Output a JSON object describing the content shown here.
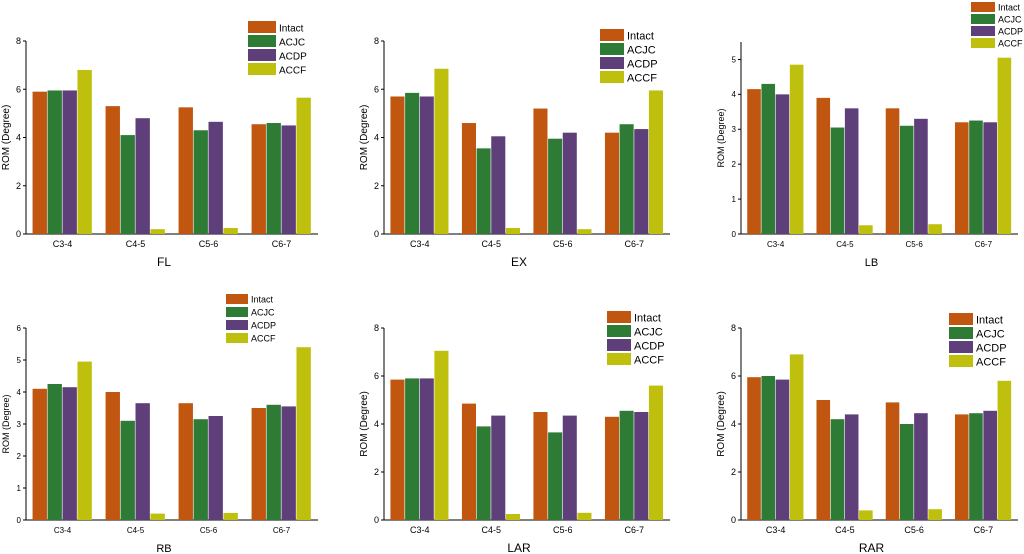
{
  "colors": {
    "Intact": "#c0560f",
    "ACJC": "#2e7b36",
    "ACDP": "#5e3f7a",
    "ACCF": "#bfbf0d"
  },
  "chart_data": [
    {
      "type": "bar",
      "title": "FL",
      "xlabel": "FL",
      "ylabel": "ROM (Degree)",
      "categories": [
        "C3-4",
        "C4-5",
        "C5-6",
        "C6-7"
      ],
      "ylim": [
        0,
        8
      ],
      "yticks": [
        0,
        2,
        4,
        6,
        8
      ],
      "legend_position": "top-right",
      "series": [
        {
          "name": "Intact",
          "values": [
            5.9,
            5.3,
            5.25,
            4.55
          ]
        },
        {
          "name": "ACJC",
          "values": [
            5.95,
            4.1,
            4.3,
            4.6
          ]
        },
        {
          "name": "ACDP",
          "values": [
            5.95,
            4.8,
            4.65,
            4.5
          ]
        },
        {
          "name": "ACCF",
          "values": [
            6.8,
            0.2,
            0.25,
            5.65
          ]
        }
      ]
    },
    {
      "type": "bar",
      "title": "EX",
      "xlabel": "EX",
      "ylabel": "ROM (Degree)",
      "categories": [
        "C3-4",
        "C4-5",
        "C5-6",
        "C6-7"
      ],
      "ylim": [
        0,
        8
      ],
      "yticks": [
        0,
        2,
        4,
        6,
        8
      ],
      "legend_position": "top-right",
      "series": [
        {
          "name": "Intact",
          "values": [
            5.7,
            4.6,
            5.2,
            4.2
          ]
        },
        {
          "name": "ACJC",
          "values": [
            5.85,
            3.55,
            3.95,
            4.55
          ]
        },
        {
          "name": "ACDP",
          "values": [
            5.7,
            4.05,
            4.2,
            4.35
          ]
        },
        {
          "name": "ACCF",
          "values": [
            6.85,
            0.25,
            0.2,
            5.95
          ]
        }
      ]
    },
    {
      "type": "bar",
      "title": "LB",
      "xlabel": "LB",
      "ylabel": "ROM (Degree)",
      "categories": [
        "C3-4",
        "C4-5",
        "C5-6",
        "C6-7"
      ],
      "ylim": [
        0,
        5.5
      ],
      "yticks": [
        0,
        1,
        2,
        3,
        4,
        5
      ],
      "legend_position": "top-right",
      "series": [
        {
          "name": "Intact",
          "values": [
            4.15,
            3.9,
            3.6,
            3.2
          ]
        },
        {
          "name": "ACJC",
          "values": [
            4.3,
            3.05,
            3.1,
            3.25
          ]
        },
        {
          "name": "ACDP",
          "values": [
            4.0,
            3.6,
            3.3,
            3.2
          ]
        },
        {
          "name": "ACCF",
          "values": [
            4.85,
            0.25,
            0.28,
            5.05
          ]
        }
      ]
    },
    {
      "type": "bar",
      "title": "RB",
      "xlabel": "RB",
      "ylabel": "ROM (Degree)",
      "categories": [
        "C3-4",
        "C4-5",
        "C5-6",
        "C6-7"
      ],
      "ylim": [
        0,
        6
      ],
      "yticks": [
        0,
        1,
        2,
        3,
        4,
        5,
        6
      ],
      "legend_position": "top-right",
      "series": [
        {
          "name": "Intact",
          "values": [
            4.1,
            4.0,
            3.65,
            3.5
          ]
        },
        {
          "name": "ACJC",
          "values": [
            4.25,
            3.1,
            3.15,
            3.6
          ]
        },
        {
          "name": "ACDP",
          "values": [
            4.15,
            3.65,
            3.25,
            3.55
          ]
        },
        {
          "name": "ACCF",
          "values": [
            4.95,
            0.2,
            0.22,
            5.4
          ]
        }
      ]
    },
    {
      "type": "bar",
      "title": "LAR",
      "xlabel": "LAR",
      "ylabel": "ROM (Degree)",
      "categories": [
        "C3-4",
        "C4-5",
        "C5-6",
        "C6-7"
      ],
      "ylim": [
        0,
        8
      ],
      "yticks": [
        0,
        2,
        4,
        6,
        8
      ],
      "legend_position": "top-right",
      "series": [
        {
          "name": "Intact",
          "values": [
            5.85,
            4.85,
            4.5,
            4.3
          ]
        },
        {
          "name": "ACJC",
          "values": [
            5.9,
            3.9,
            3.65,
            4.55
          ]
        },
        {
          "name": "ACDP",
          "values": [
            5.9,
            4.35,
            4.35,
            4.5
          ]
        },
        {
          "name": "ACCF",
          "values": [
            7.05,
            0.25,
            0.3,
            5.6
          ]
        }
      ]
    },
    {
      "type": "bar",
      "title": "RAR",
      "xlabel": "RAR",
      "ylabel": "ROM (Degree)",
      "categories": [
        "C3-4",
        "C4-5",
        "C5-6",
        "C6-7"
      ],
      "ylim": [
        0,
        8
      ],
      "yticks": [
        0,
        2,
        4,
        6,
        8
      ],
      "legend_position": "top-right",
      "series": [
        {
          "name": "Intact",
          "values": [
            5.95,
            5.0,
            4.9,
            4.4
          ]
        },
        {
          "name": "ACJC",
          "values": [
            6.0,
            4.2,
            4.0,
            4.45
          ]
        },
        {
          "name": "ACDP",
          "values": [
            5.85,
            4.4,
            4.45,
            4.55
          ]
        },
        {
          "name": "ACCF",
          "values": [
            6.9,
            0.4,
            0.45,
            5.8
          ]
        }
      ]
    }
  ]
}
